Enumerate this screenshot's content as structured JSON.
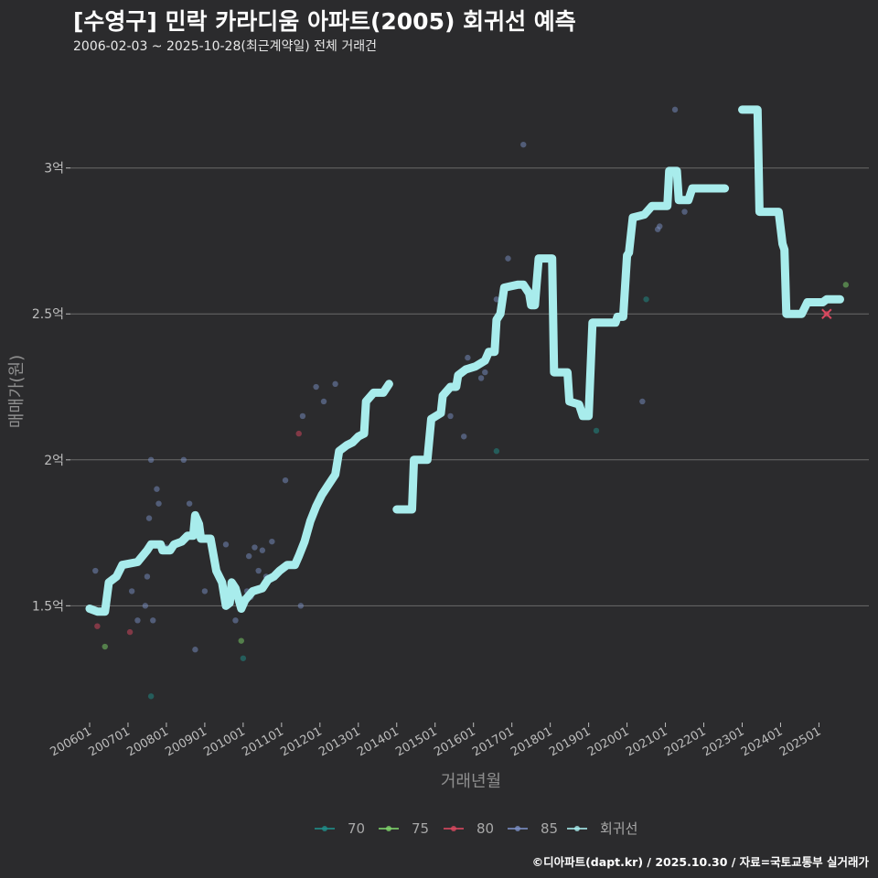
{
  "title": "[수영구] 민락 카라디움 아파트(2005) 회귀선 예측",
  "subtitle": "2006-02-03 ~ 2025-10-28(최근계약일) 전체 거래건",
  "source": "©디아파트(dapt.kr) / 2025.10.30 / 자료=국토교통부 실거래가",
  "chart_data": {
    "type": "scatter",
    "xlabel": "거래년월",
    "ylabel": "매매가(원)",
    "x_range": [
      2005.5,
      2026.3
    ],
    "ylim": [
      1.1,
      3.35
    ],
    "y_ticks": [
      {
        "value": 1.5,
        "label": "1.5억"
      },
      {
        "value": 2.0,
        "label": "2억"
      },
      {
        "value": 2.5,
        "label": "2.5억"
      },
      {
        "value": 3.0,
        "label": "3억"
      }
    ],
    "x_ticks": [
      {
        "value": 2006,
        "label": "200601"
      },
      {
        "value": 2007,
        "label": "200701"
      },
      {
        "value": 2008,
        "label": "200801"
      },
      {
        "value": 2009,
        "label": "200901"
      },
      {
        "value": 2010,
        "label": "201001"
      },
      {
        "value": 2011,
        "label": "201101"
      },
      {
        "value": 2012,
        "label": "201201"
      },
      {
        "value": 2013,
        "label": "201301"
      },
      {
        "value": 2014,
        "label": "201401"
      },
      {
        "value": 2015,
        "label": "201501"
      },
      {
        "value": 2016,
        "label": "201601"
      },
      {
        "value": 2017,
        "label": "201701"
      },
      {
        "value": 2018,
        "label": "201801"
      },
      {
        "value": 2019,
        "label": "201901"
      },
      {
        "value": 2020,
        "label": "202001"
      },
      {
        "value": 2021,
        "label": "202101"
      },
      {
        "value": 2022,
        "label": "202201"
      },
      {
        "value": 2023,
        "label": "202301"
      },
      {
        "value": 2024,
        "label": "202401"
      },
      {
        "value": 2025,
        "label": "202501"
      }
    ],
    "legend": [
      {
        "name": "70",
        "color": "#1f8f8a"
      },
      {
        "name": "75",
        "color": "#7ed36a"
      },
      {
        "name": "80",
        "color": "#d9485f"
      },
      {
        "name": "85",
        "color": "#7a8fc4"
      },
      {
        "name": "회귀선",
        "color": "#a8ecec"
      }
    ],
    "series": [
      {
        "name": "70",
        "color": "#1f8f8a",
        "points": [
          [
            2007.6,
            1.19
          ],
          [
            2010.0,
            1.32
          ],
          [
            2016.6,
            2.03
          ],
          [
            2019.2,
            2.1
          ],
          [
            2020.5,
            2.55
          ]
        ]
      },
      {
        "name": "75",
        "color": "#7ed36a",
        "points": [
          [
            2006.4,
            1.36
          ],
          [
            2009.95,
            1.38
          ],
          [
            2025.7,
            2.6
          ]
        ]
      },
      {
        "name": "80",
        "color": "#d9485f",
        "points": [
          [
            2006.2,
            1.43
          ],
          [
            2007.05,
            1.41
          ],
          [
            2011.45,
            2.09
          ],
          [
            2025.2,
            2.5
          ]
        ]
      },
      {
        "name": "85",
        "color": "#7a8fc4",
        "points": [
          [
            2006.15,
            1.62
          ],
          [
            2006.7,
            1.6
          ],
          [
            2007.1,
            1.55
          ],
          [
            2007.25,
            1.45
          ],
          [
            2007.45,
            1.5
          ],
          [
            2007.5,
            1.6
          ],
          [
            2007.55,
            1.8
          ],
          [
            2007.6,
            2.0
          ],
          [
            2007.65,
            1.45
          ],
          [
            2007.75,
            1.9
          ],
          [
            2007.8,
            1.85
          ],
          [
            2008.0,
            1.7
          ],
          [
            2008.45,
            2.0
          ],
          [
            2008.6,
            1.85
          ],
          [
            2008.75,
            1.35
          ],
          [
            2009.0,
            1.55
          ],
          [
            2009.5,
            1.55
          ],
          [
            2009.55,
            1.71
          ],
          [
            2009.8,
            1.45
          ],
          [
            2010.0,
            1.52
          ],
          [
            2010.1,
            1.55
          ],
          [
            2010.15,
            1.67
          ],
          [
            2010.2,
            1.53
          ],
          [
            2010.3,
            1.7
          ],
          [
            2010.4,
            1.62
          ],
          [
            2010.5,
            1.69
          ],
          [
            2010.6,
            1.6
          ],
          [
            2010.75,
            1.72
          ],
          [
            2011.1,
            1.93
          ],
          [
            2011.5,
            1.5
          ],
          [
            2011.55,
            2.15
          ],
          [
            2011.9,
            2.25
          ],
          [
            2012.1,
            2.2
          ],
          [
            2012.4,
            2.26
          ],
          [
            2014.3,
            1.83
          ],
          [
            2015.4,
            2.15
          ],
          [
            2015.75,
            2.08
          ],
          [
            2015.85,
            2.35
          ],
          [
            2016.2,
            2.28
          ],
          [
            2016.3,
            2.3
          ],
          [
            2016.6,
            2.55
          ],
          [
            2016.9,
            2.69
          ],
          [
            2017.3,
            3.08
          ],
          [
            2020.4,
            2.2
          ],
          [
            2020.8,
            2.79
          ],
          [
            2020.85,
            2.8
          ],
          [
            2021.25,
            3.2
          ],
          [
            2021.5,
            2.85
          ]
        ]
      }
    ],
    "regression_line": {
      "name": "회귀선",
      "color": "#a8ecec",
      "segments": [
        [
          [
            2006.0,
            1.49
          ],
          [
            2006.2,
            1.48
          ],
          [
            2006.4,
            1.48
          ],
          [
            2006.5,
            1.58
          ],
          [
            2006.7,
            1.6
          ],
          [
            2006.85,
            1.64
          ],
          [
            2007.25,
            1.65
          ],
          [
            2007.5,
            1.69
          ],
          [
            2007.6,
            1.71
          ],
          [
            2007.85,
            1.71
          ],
          [
            2007.9,
            1.69
          ],
          [
            2008.1,
            1.69
          ],
          [
            2008.2,
            1.71
          ],
          [
            2008.4,
            1.72
          ],
          [
            2008.55,
            1.74
          ],
          [
            2008.7,
            1.74
          ],
          [
            2008.75,
            1.81
          ],
          [
            2008.85,
            1.78
          ],
          [
            2008.9,
            1.73
          ],
          [
            2009.15,
            1.73
          ],
          [
            2009.3,
            1.62
          ],
          [
            2009.45,
            1.58
          ],
          [
            2009.55,
            1.5
          ],
          [
            2009.65,
            1.51
          ],
          [
            2009.7,
            1.58
          ],
          [
            2009.8,
            1.56
          ],
          [
            2009.95,
            1.49
          ],
          [
            2010.05,
            1.52
          ],
          [
            2010.25,
            1.55
          ],
          [
            2010.5,
            1.56
          ],
          [
            2010.65,
            1.59
          ],
          [
            2010.8,
            1.6
          ],
          [
            2010.95,
            1.62
          ],
          [
            2011.15,
            1.64
          ],
          [
            2011.35,
            1.64
          ],
          [
            2011.45,
            1.67
          ],
          [
            2011.6,
            1.72
          ],
          [
            2011.75,
            1.79
          ],
          [
            2011.9,
            1.84
          ],
          [
            2012.05,
            1.88
          ],
          [
            2012.2,
            1.91
          ],
          [
            2012.4,
            1.95
          ],
          [
            2012.5,
            2.03
          ],
          [
            2012.7,
            2.05
          ],
          [
            2012.85,
            2.06
          ],
          [
            2013.0,
            2.08
          ],
          [
            2013.15,
            2.09
          ],
          [
            2013.2,
            2.2
          ],
          [
            2013.4,
            2.23
          ],
          [
            2013.65,
            2.23
          ],
          [
            2013.8,
            2.26
          ]
        ],
        [
          [
            2014.0,
            1.83
          ],
          [
            2014.4,
            1.83
          ],
          [
            2014.45,
            2.0
          ],
          [
            2014.8,
            2.0
          ],
          [
            2014.9,
            2.14
          ],
          [
            2015.15,
            2.16
          ],
          [
            2015.2,
            2.22
          ],
          [
            2015.4,
            2.25
          ],
          [
            2015.55,
            2.25
          ],
          [
            2015.6,
            2.29
          ],
          [
            2015.8,
            2.31
          ],
          [
            2016.05,
            2.32
          ],
          [
            2016.3,
            2.34
          ],
          [
            2016.4,
            2.37
          ],
          [
            2016.55,
            2.37
          ],
          [
            2016.6,
            2.48
          ],
          [
            2016.7,
            2.5
          ],
          [
            2016.8,
            2.59
          ],
          [
            2017.15,
            2.6
          ],
          [
            2017.3,
            2.6
          ],
          [
            2017.45,
            2.57
          ],
          [
            2017.5,
            2.53
          ],
          [
            2017.6,
            2.53
          ],
          [
            2017.65,
            2.61
          ],
          [
            2017.7,
            2.69
          ],
          [
            2018.05,
            2.69
          ],
          [
            2018.1,
            2.3
          ],
          [
            2018.45,
            2.3
          ],
          [
            2018.5,
            2.2
          ],
          [
            2018.75,
            2.19
          ],
          [
            2018.85,
            2.15
          ],
          [
            2019.0,
            2.15
          ],
          [
            2019.1,
            2.47
          ],
          [
            2019.7,
            2.47
          ],
          [
            2019.75,
            2.49
          ],
          [
            2019.9,
            2.49
          ],
          [
            2020.0,
            2.7
          ],
          [
            2020.05,
            2.71
          ],
          [
            2020.15,
            2.83
          ],
          [
            2020.45,
            2.84
          ],
          [
            2020.65,
            2.87
          ],
          [
            2021.05,
            2.87
          ],
          [
            2021.1,
            2.99
          ],
          [
            2021.3,
            2.99
          ],
          [
            2021.35,
            2.89
          ],
          [
            2021.6,
            2.89
          ],
          [
            2021.7,
            2.93
          ],
          [
            2022.55,
            2.93
          ]
        ],
        [
          [
            2023.0,
            3.2
          ],
          [
            2023.4,
            3.2
          ],
          [
            2023.45,
            2.85
          ],
          [
            2023.95,
            2.85
          ],
          [
            2024.05,
            2.74
          ],
          [
            2024.1,
            2.72
          ],
          [
            2024.15,
            2.5
          ],
          [
            2024.55,
            2.5
          ],
          [
            2024.7,
            2.54
          ],
          [
            2025.1,
            2.54
          ],
          [
            2025.2,
            2.55
          ],
          [
            2025.55,
            2.55
          ]
        ]
      ]
    }
  }
}
